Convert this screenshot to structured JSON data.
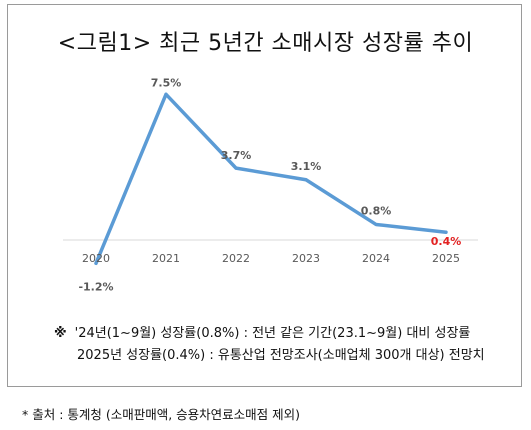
{
  "title": "<그림1> 최근 5년간 소매시장 성장률 추이",
  "chart_data": {
    "type": "line",
    "title": "<그림1> 최근 5년간 소매시장 성장률 추이",
    "categories": [
      "2020",
      "2021",
      "2022",
      "2023",
      "2024",
      "2025"
    ],
    "values": [
      -1.2,
      7.5,
      3.7,
      3.1,
      0.8,
      0.4
    ],
    "data_labels": [
      "-1.2%",
      "7.5%",
      "3.7%",
      "3.1%",
      "0.8%",
      "0.4%"
    ],
    "highlight_index": 5,
    "line_color": "#5b9bd5",
    "highlight_color": "#e32222",
    "label_color": "#595959",
    "axis_color": "#d9d9d9",
    "ylim": [
      -1.2,
      7.5
    ],
    "grid": false,
    "legend": "none"
  },
  "note": {
    "mark": "※",
    "line1": "'24년(1~9월) 성장률(0.8%) : 전년 같은 기간(23.1~9월) 대비 성장률",
    "line2": "2025년 성장률(0.4%) : 유통산업 전망조사(소매업체 300개 대상) 전망치"
  },
  "source": "* 출처 : 통계청 (소매판매액, 승용차연료소매점 제외)"
}
